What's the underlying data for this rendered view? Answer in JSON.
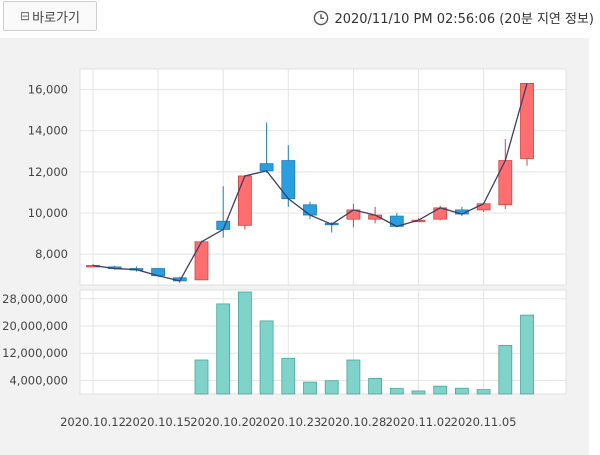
{
  "toolbar": {
    "shortcut_label": "바로가기",
    "timestamp": "2020/11/10 PM 02:56:06 (20분 지연 정보)"
  },
  "colors": {
    "up_fill": "#ff6f6f",
    "up_stroke": "#d14444",
    "down_fill": "#2a9fe0",
    "down_stroke": "#1f7fb8",
    "volume_fill": "#7fd3c8",
    "volume_stroke": "#4aa79b",
    "line": "#3d3f63",
    "grid": "#e4e4e4"
  },
  "chart_data": [
    {
      "type": "candlestick",
      "title": "",
      "ylim": [
        6500,
        17000
      ],
      "y_ticks": [
        "8,000",
        "10,000",
        "12,000",
        "14,000",
        "16,000"
      ],
      "y_tick_values": [
        8000,
        10000,
        12000,
        14000,
        16000
      ],
      "candles": [
        {
          "open": 7450,
          "close": 7450,
          "high": 7520,
          "low": 7380
        },
        {
          "open": 7380,
          "close": 7300,
          "high": 7430,
          "low": 7250
        },
        {
          "open": 7300,
          "close": 7250,
          "high": 7400,
          "low": 7150
        },
        {
          "open": 7300,
          "close": 6950,
          "high": 7320,
          "low": 6900
        },
        {
          "open": 6850,
          "close": 6700,
          "high": 6900,
          "low": 6600
        },
        {
          "open": 6750,
          "close": 8600,
          "high": 8650,
          "low": 6750
        },
        {
          "open": 9600,
          "close": 9200,
          "high": 11300,
          "low": 8800
        },
        {
          "open": 9400,
          "close": 11800,
          "high": 11850,
          "low": 9200
        },
        {
          "open": 12400,
          "close": 12050,
          "high": 14400,
          "low": 11950
        },
        {
          "open": 12550,
          "close": 10700,
          "high": 13300,
          "low": 10300
        },
        {
          "open": 10400,
          "close": 9900,
          "high": 10550,
          "low": 9700
        },
        {
          "open": 9500,
          "close": 9450,
          "high": 9550,
          "low": 9050
        },
        {
          "open": 9700,
          "close": 10150,
          "high": 10450,
          "low": 9300
        },
        {
          "open": 9700,
          "close": 9900,
          "high": 10300,
          "low": 9500
        },
        {
          "open": 9850,
          "close": 9350,
          "high": 10000,
          "low": 9300
        },
        {
          "open": 9600,
          "close": 9650,
          "high": 9750,
          "low": 9550
        },
        {
          "open": 9700,
          "close": 10250,
          "high": 10350,
          "low": 9650
        },
        {
          "open": 10150,
          "close": 9950,
          "high": 10300,
          "low": 9850
        },
        {
          "open": 10150,
          "close": 10450,
          "high": 10500,
          "low": 10050
        },
        {
          "open": 10400,
          "close": 12550,
          "high": 13600,
          "low": 10200
        },
        {
          "open": 12650,
          "close": 16300,
          "high": 16300,
          "low": 12300
        }
      ],
      "close_line": [
        7450,
        7300,
        7250,
        6950,
        6700,
        8600,
        9200,
        11800,
        12050,
        10700,
        9900,
        9450,
        10150,
        9900,
        9350,
        9650,
        10250,
        9950,
        10450,
        12550,
        16300
      ]
    },
    {
      "type": "bar",
      "ylim": [
        0,
        30000000
      ],
      "y_ticks": [
        "4,000,000",
        "12,000,000",
        "20,000,000",
        "28,000,000"
      ],
      "y_tick_values": [
        4000000,
        12000000,
        20000000,
        28000000
      ],
      "values": [
        0,
        0,
        0,
        0,
        0,
        10000000,
        26500000,
        30000000,
        21500000,
        10500000,
        3500000,
        3900000,
        10000000,
        4600000,
        1600000,
        900000,
        2300000,
        1700000,
        1300000,
        14300000,
        23200000
      ]
    }
  ],
  "x_axis": {
    "ticks": [
      "2020.10.12",
      "2020.10.15",
      "2020.10.20",
      "2020.10.23",
      "2020.10.28",
      "2020.11.02",
      "2020.11.05"
    ],
    "tick_indices": [
      0,
      3,
      6,
      9,
      12,
      15,
      18
    ]
  }
}
